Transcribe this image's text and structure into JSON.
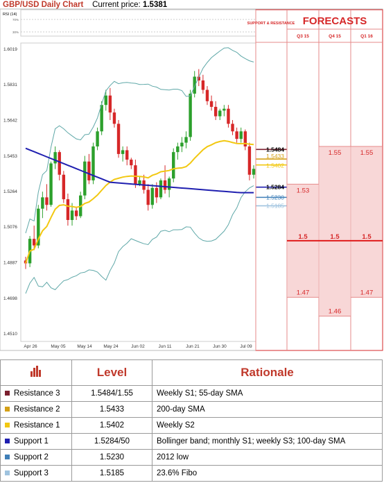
{
  "header": {
    "pair_title": "GBP/USD Daily Chart",
    "price_label": "Current price:",
    "price_value": "1.5381"
  },
  "rsi": {
    "label": "RSI (14)",
    "levels": [
      "70%",
      "30%"
    ]
  },
  "forecast": {
    "title": "FORECASTS",
    "support_resistance_label": "SUPPORT & RESISTANCE",
    "columns": [
      {
        "name": "Q3 15",
        "values": [
          1.53,
          1.5,
          1.47
        ],
        "labels": [
          "1.53",
          "1.5",
          "1.47"
        ]
      },
      {
        "name": "Q4 15",
        "values": [
          1.55,
          1.5,
          1.46
        ],
        "labels": [
          "1.55",
          "1.5",
          "1.46"
        ]
      },
      {
        "name": "Q1 16",
        "values": [
          1.55,
          1.5,
          1.47
        ],
        "labels": [
          "1.55",
          "1.5",
          "1.47"
        ]
      }
    ],
    "colors": {
      "title": "#d62728",
      "highlight": "#f8d7d7",
      "line": "#e01b1b"
    }
  },
  "chart_data": {
    "type": "candlestick",
    "ylim": [
      1.451,
      1.6019
    ],
    "y_ticks": [
      1.6019,
      1.5831,
      1.5642,
      1.5453,
      1.5264,
      1.5076,
      1.4887,
      1.4698,
      1.451
    ],
    "y_tick_labels": [
      "1.6019",
      "1.5831",
      "1.5642",
      "1.5453",
      "1.5264",
      "1.5076",
      "1.4887",
      "1.4698",
      "1.4510"
    ],
    "x_labels": [
      "Apr 26",
      "May 05",
      "May 14",
      "May 24",
      "Jun 02",
      "Jun 11",
      "Jun 21",
      "Jun 30",
      "Jul 09"
    ],
    "levels": [
      {
        "name": "Resistance 3",
        "value": 1.5484,
        "label": "1.5484",
        "color": "#7b1f2e"
      },
      {
        "name": "Resistance 2",
        "value": 1.5433,
        "label": "1.5433",
        "color": "#d4a017"
      },
      {
        "name": "Resistance 1",
        "value": 1.5402,
        "label": "1.5402",
        "color": "#f2c811"
      },
      {
        "name": "Support 1",
        "value": 1.5284,
        "label": "1.5284",
        "color": "#1f1fb0"
      },
      {
        "name": "Support 2",
        "value": 1.523,
        "label": "1.5230",
        "color": "#3f7fb8"
      },
      {
        "name": "Support 3",
        "value": 1.5185,
        "label": "1.5185",
        "color": "#9fc3df"
      }
    ],
    "candles": [
      {
        "o": 1.4895,
        "h": 1.4915,
        "l": 1.485,
        "c": 1.488
      },
      {
        "o": 1.488,
        "h": 1.5025,
        "l": 1.486,
        "c": 1.501
      },
      {
        "o": 1.501,
        "h": 1.508,
        "l": 1.495,
        "c": 1.4975
      },
      {
        "o": 1.4975,
        "h": 1.519,
        "l": 1.496,
        "c": 1.517
      },
      {
        "o": 1.517,
        "h": 1.526,
        "l": 1.512,
        "c": 1.523
      },
      {
        "o": 1.523,
        "h": 1.53,
        "l": 1.516,
        "c": 1.519
      },
      {
        "o": 1.519,
        "h": 1.542,
        "l": 1.518,
        "c": 1.541
      },
      {
        "o": 1.541,
        "h": 1.55,
        "l": 1.538,
        "c": 1.547
      },
      {
        "o": 1.547,
        "h": 1.548,
        "l": 1.532,
        "c": 1.535
      },
      {
        "o": 1.535,
        "h": 1.537,
        "l": 1.52,
        "c": 1.522
      },
      {
        "o": 1.522,
        "h": 1.525,
        "l": 1.508,
        "c": 1.511
      },
      {
        "o": 1.511,
        "h": 1.52,
        "l": 1.508,
        "c": 1.516
      },
      {
        "o": 1.516,
        "h": 1.518,
        "l": 1.511,
        "c": 1.513
      },
      {
        "o": 1.513,
        "h": 1.526,
        "l": 1.512,
        "c": 1.524
      },
      {
        "o": 1.524,
        "h": 1.545,
        "l": 1.522,
        "c": 1.542
      },
      {
        "o": 1.542,
        "h": 1.546,
        "l": 1.53,
        "c": 1.532
      },
      {
        "o": 1.532,
        "h": 1.552,
        "l": 1.53,
        "c": 1.55
      },
      {
        "o": 1.55,
        "h": 1.56,
        "l": 1.548,
        "c": 1.558
      },
      {
        "o": 1.558,
        "h": 1.574,
        "l": 1.556,
        "c": 1.572
      },
      {
        "o": 1.572,
        "h": 1.58,
        "l": 1.569,
        "c": 1.577
      },
      {
        "o": 1.577,
        "h": 1.581,
        "l": 1.564,
        "c": 1.568
      },
      {
        "o": 1.568,
        "h": 1.57,
        "l": 1.56,
        "c": 1.562
      },
      {
        "o": 1.562,
        "h": 1.564,
        "l": 1.544,
        "c": 1.546
      },
      {
        "o": 1.546,
        "h": 1.55,
        "l": 1.542,
        "c": 1.548
      },
      {
        "o": 1.548,
        "h": 1.55,
        "l": 1.54,
        "c": 1.543
      },
      {
        "o": 1.543,
        "h": 1.544,
        "l": 1.538,
        "c": 1.54
      },
      {
        "o": 1.54,
        "h": 1.543,
        "l": 1.528,
        "c": 1.53
      },
      {
        "o": 1.53,
        "h": 1.534,
        "l": 1.529,
        "c": 1.532
      },
      {
        "o": 1.532,
        "h": 1.535,
        "l": 1.525,
        "c": 1.527
      },
      {
        "o": 1.527,
        "h": 1.53,
        "l": 1.516,
        "c": 1.519
      },
      {
        "o": 1.519,
        "h": 1.53,
        "l": 1.517,
        "c": 1.528
      },
      {
        "o": 1.528,
        "h": 1.531,
        "l": 1.52,
        "c": 1.523
      },
      {
        "o": 1.523,
        "h": 1.533,
        "l": 1.522,
        "c": 1.532
      },
      {
        "o": 1.532,
        "h": 1.54,
        "l": 1.525,
        "c": 1.527
      },
      {
        "o": 1.527,
        "h": 1.534,
        "l": 1.523,
        "c": 1.533
      },
      {
        "o": 1.533,
        "h": 1.549,
        "l": 1.531,
        "c": 1.547
      },
      {
        "o": 1.547,
        "h": 1.552,
        "l": 1.543,
        "c": 1.55
      },
      {
        "o": 1.55,
        "h": 1.555,
        "l": 1.547,
        "c": 1.552
      },
      {
        "o": 1.552,
        "h": 1.558,
        "l": 1.549,
        "c": 1.555
      },
      {
        "o": 1.555,
        "h": 1.58,
        "l": 1.553,
        "c": 1.578
      },
      {
        "o": 1.578,
        "h": 1.59,
        "l": 1.576,
        "c": 1.587
      },
      {
        "o": 1.587,
        "h": 1.591,
        "l": 1.582,
        "c": 1.585
      },
      {
        "o": 1.585,
        "h": 1.588,
        "l": 1.578,
        "c": 1.58
      },
      {
        "o": 1.58,
        "h": 1.582,
        "l": 1.572,
        "c": 1.574
      },
      {
        "o": 1.574,
        "h": 1.577,
        "l": 1.569,
        "c": 1.571
      },
      {
        "o": 1.571,
        "h": 1.574,
        "l": 1.564,
        "c": 1.566
      },
      {
        "o": 1.566,
        "h": 1.57,
        "l": 1.564,
        "c": 1.569
      },
      {
        "o": 1.569,
        "h": 1.572,
        "l": 1.566,
        "c": 1.57
      },
      {
        "o": 1.57,
        "h": 1.572,
        "l": 1.56,
        "c": 1.562
      },
      {
        "o": 1.562,
        "h": 1.564,
        "l": 1.556,
        "c": 1.558
      },
      {
        "o": 1.558,
        "h": 1.56,
        "l": 1.552,
        "c": 1.554
      },
      {
        "o": 1.554,
        "h": 1.56,
        "l": 1.552,
        "c": 1.558
      },
      {
        "o": 1.558,
        "h": 1.559,
        "l": 1.548,
        "c": 1.55
      },
      {
        "o": 1.55,
        "h": 1.552,
        "l": 1.532,
        "c": 1.535
      },
      {
        "o": 1.535,
        "h": 1.54,
        "l": 1.533,
        "c": 1.5381
      }
    ]
  },
  "table": {
    "headers": [
      "Level",
      "Rationale"
    ],
    "rows": [
      {
        "name": "Resistance 3",
        "level": "1.5484/1.55",
        "rationale": "Weekly S1; 55-day SMA",
        "color": "#7b1f2e"
      },
      {
        "name": "Resistance 2",
        "level": "1.5433",
        "rationale": "200-day SMA",
        "color": "#d4a017"
      },
      {
        "name": "Resistance 1",
        "level": "1.5402",
        "rationale": "Weekly S2",
        "color": "#f2c811"
      },
      {
        "name": "Support 1",
        "level": "1.5284/50",
        "rationale": "Bollinger band; monthly S1; weekly S3; 100-day SMA",
        "color": "#1f1fb0"
      },
      {
        "name": "Support 2",
        "level": "1.5230",
        "rationale": "2012 low",
        "color": "#3f7fb8"
      },
      {
        "name": "Support 3",
        "level": "1.5185",
        "rationale": "23.6% Fibo",
        "color": "#9fc3df"
      }
    ]
  }
}
